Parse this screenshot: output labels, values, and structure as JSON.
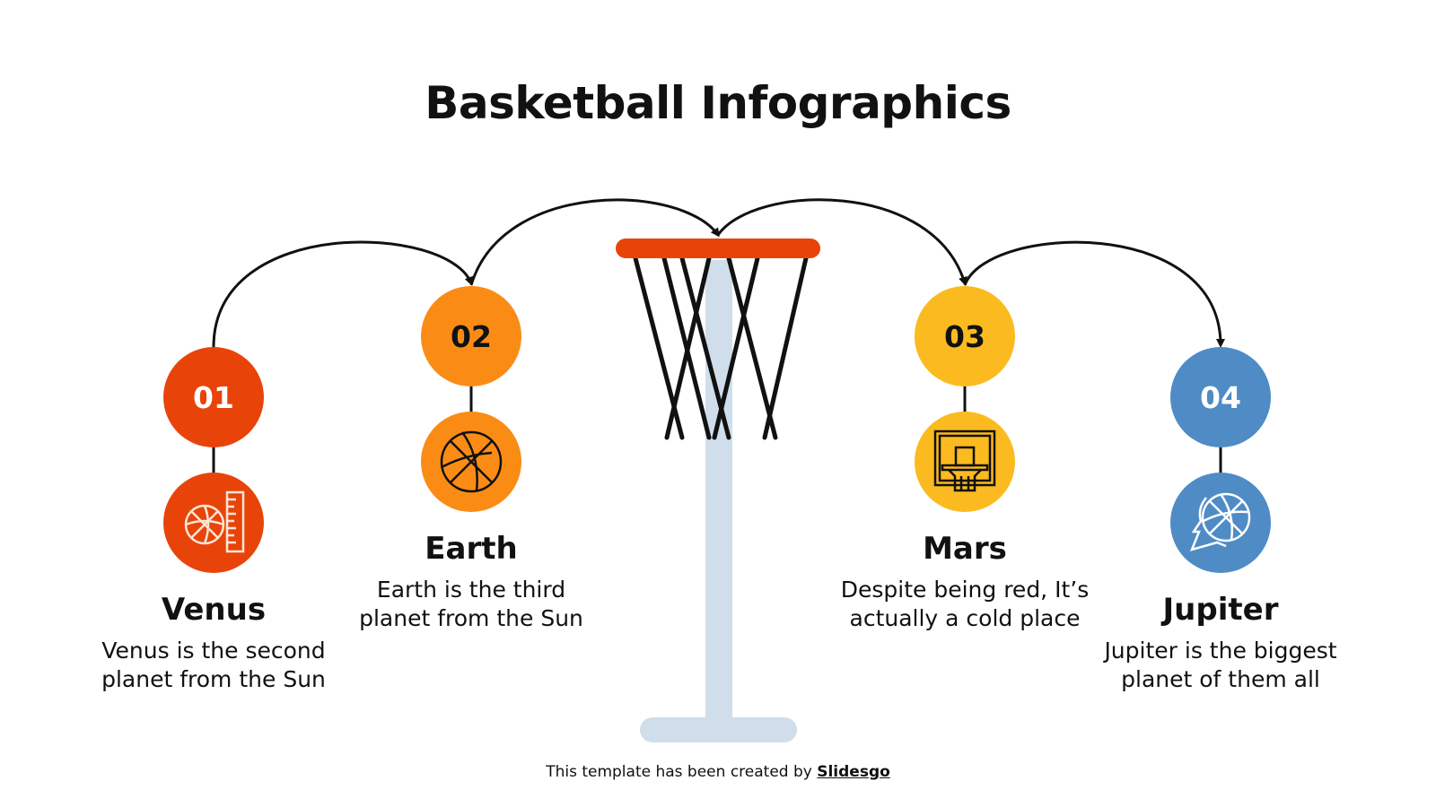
{
  "title": "Basketball Infographics",
  "colors": {
    "step1": "#E8440A",
    "step2": "#FA8C16",
    "step3": "#FBBA1F",
    "step4": "#4F8CC6",
    "hoop_rim": "#E8440A",
    "pole": "#CFDEEA"
  },
  "steps": [
    {
      "number": "01",
      "name": "Venus",
      "description": "Venus is the second planet from the Sun",
      "icon": "basketball-ruler-icon"
    },
    {
      "number": "02",
      "name": "Earth",
      "description": "Earth is the third planet from the Sun",
      "icon": "basketball-icon"
    },
    {
      "number": "03",
      "name": "Mars",
      "description": "Despite being red, It’s actually a cold place",
      "icon": "backboard-hoop-icon"
    },
    {
      "number": "04",
      "name": "Jupiter",
      "description": "Jupiter is the biggest planet of them all",
      "icon": "basketball-head-icon"
    }
  ],
  "footer": {
    "text": "This template has been created by ",
    "link": "Slidesgo"
  }
}
